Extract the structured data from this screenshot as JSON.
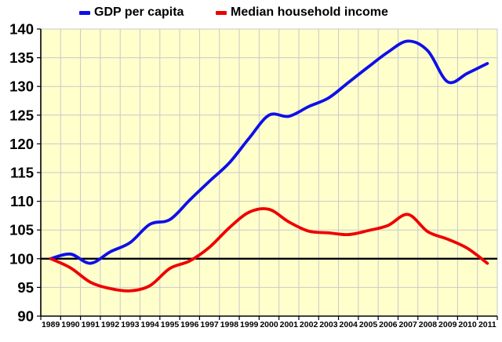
{
  "legend": [
    {
      "label": "GDP per capita",
      "color": "#0f0fe8"
    },
    {
      "label": "Median household income",
      "color": "#ee0000"
    }
  ],
  "chart_data": {
    "type": "line",
    "title": "",
    "xlabel": "",
    "ylabel": "",
    "x": [
      "1989",
      "1990",
      "1991",
      "1992",
      "1993",
      "1994",
      "1995",
      "1996",
      "1997",
      "1998",
      "1999",
      "2000",
      "2001",
      "2002",
      "2003",
      "2004",
      "2005",
      "2006",
      "2007",
      "2008",
      "2009",
      "2010",
      "2011"
    ],
    "y_ticks": [
      "90",
      "95",
      "100",
      "105",
      "110",
      "115",
      "120",
      "125",
      "130",
      "135",
      "140"
    ],
    "ylim": [
      90,
      140
    ],
    "baseline": 100,
    "grid": true,
    "smoothed": true,
    "legend_position": "top",
    "plot_bg": "#ffffcc",
    "grid_color": "#c9c9c9",
    "axis_color": "#000000",
    "baseline_color": "#000000",
    "series": [
      {
        "name": "GDP per capita",
        "color": "#0f0fe8",
        "values": [
          100,
          100.8,
          99.2,
          101.2,
          102.8,
          106.0,
          106.8,
          110.2,
          113.5,
          116.7,
          121.0,
          125.0,
          124.8,
          126.5,
          128.0,
          130.7,
          133.4,
          136.0,
          137.9,
          136.2,
          130.8,
          132.3,
          134.0
        ]
      },
      {
        "name": "Median household income",
        "color": "#ee0000",
        "values": [
          100,
          98.4,
          95.9,
          94.8,
          94.4,
          95.3,
          98.3,
          99.6,
          102.0,
          105.4,
          108.1,
          108.6,
          106.4,
          104.8,
          104.5,
          104.2,
          104.9,
          105.8,
          107.7,
          104.7,
          103.4,
          101.8,
          99.2
        ]
      }
    ]
  }
}
